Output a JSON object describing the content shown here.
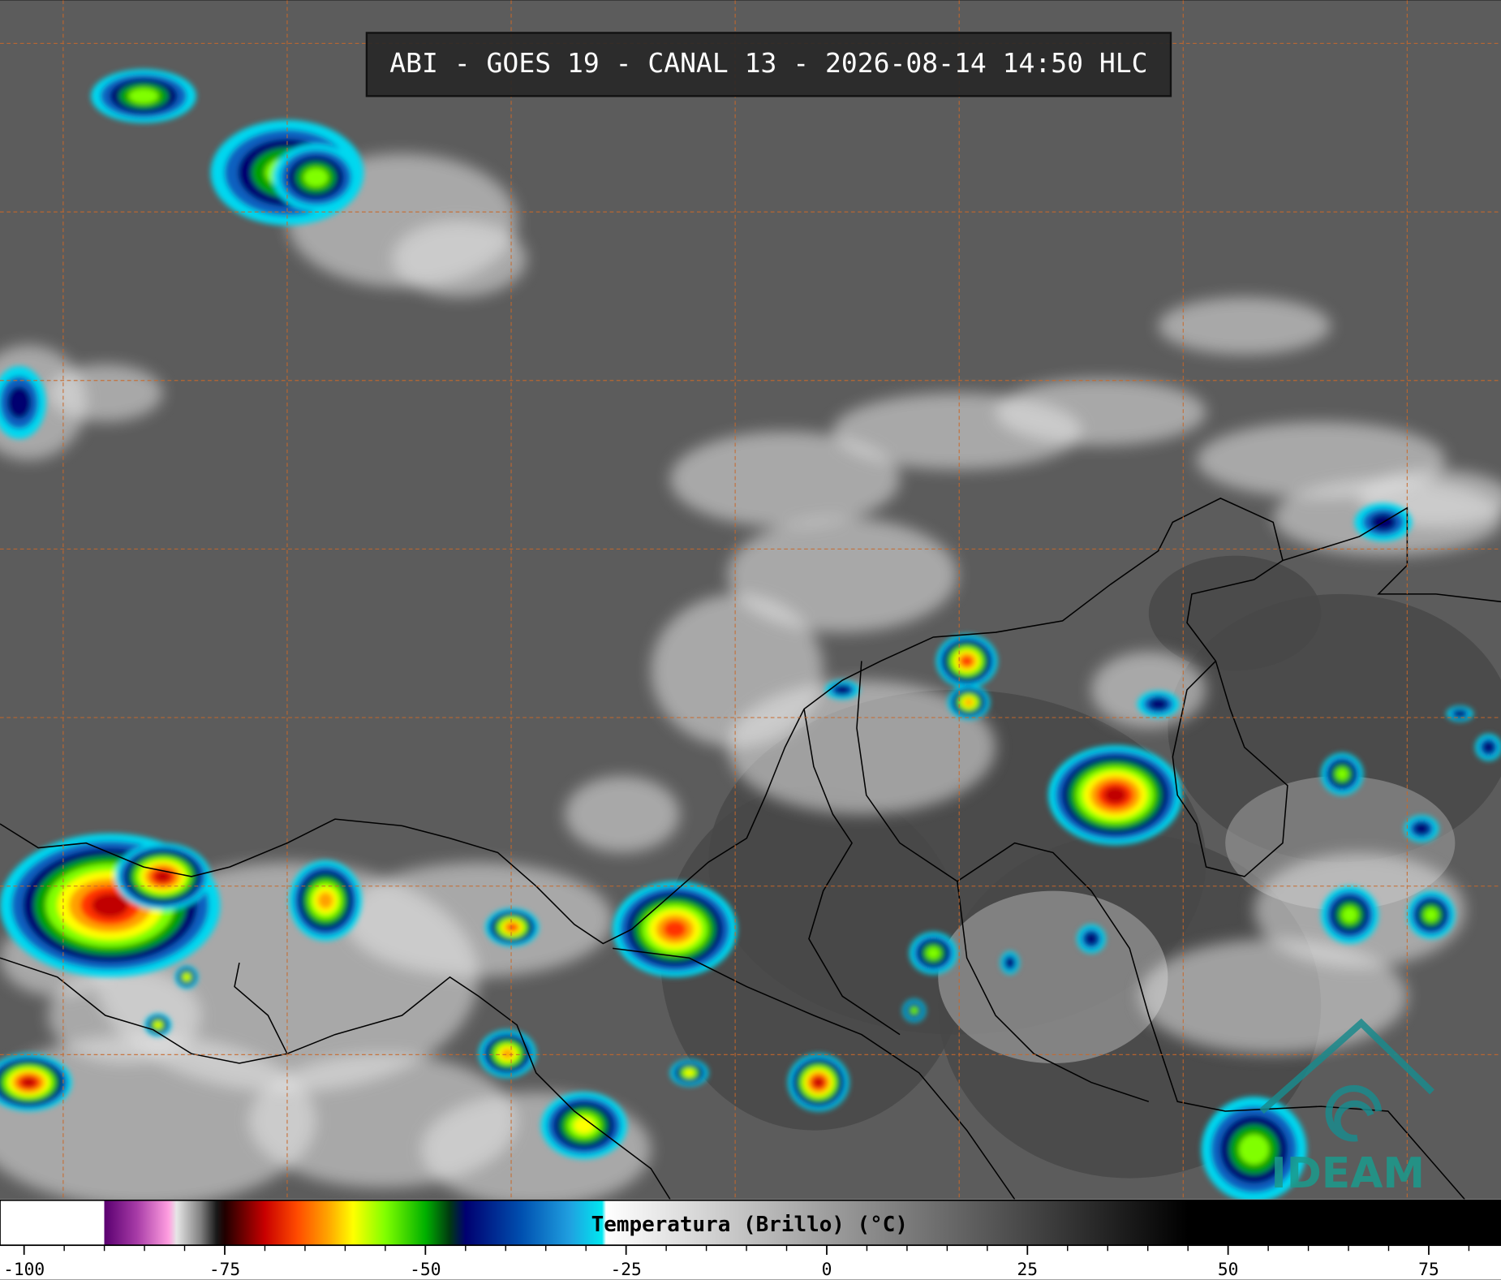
{
  "header": {
    "title": "ABI - GOES 19 - CANAL 13 - 2026-08-14 14:50 HLC"
  },
  "logo": {
    "text": "IDEAM"
  },
  "colorbar": {
    "label": "Temperatura (Brillo) (°C)",
    "lim": [
      -103,
      84
    ],
    "ticks": [
      -100,
      -75,
      -50,
      -25,
      0,
      25,
      50,
      75
    ],
    "minor_ticks": [
      -95,
      -90,
      -85,
      -80,
      -70,
      -65,
      -60,
      -55,
      -45,
      -40,
      -35,
      -30,
      -20,
      -15,
      -10,
      -5,
      5,
      10,
      15,
      20,
      30,
      35,
      40,
      45,
      55,
      60,
      65,
      70,
      80
    ],
    "stops": [
      {
        "value": -103,
        "color": "#ffffff"
      },
      {
        "value": -90,
        "color": "#ffffff"
      },
      {
        "value": -90,
        "color": "#5a0070"
      },
      {
        "value": -86,
        "color": "#a63aa6"
      },
      {
        "value": -82,
        "color": "#ff9ee0"
      },
      {
        "value": -81,
        "color": "#e6e6e6"
      },
      {
        "value": -78,
        "color": "#808080"
      },
      {
        "value": -76,
        "color": "#181818"
      },
      {
        "value": -75,
        "color": "#200000"
      },
      {
        "value": -70,
        "color": "#c80000"
      },
      {
        "value": -66,
        "color": "#ff4a00"
      },
      {
        "value": -62,
        "color": "#ffa800"
      },
      {
        "value": -59,
        "color": "#ffff00"
      },
      {
        "value": -55,
        "color": "#80ff00"
      },
      {
        "value": -50,
        "color": "#00b000"
      },
      {
        "value": -47,
        "color": "#003a10"
      },
      {
        "value": -45,
        "color": "#000070"
      },
      {
        "value": -38,
        "color": "#0050b0"
      },
      {
        "value": -32,
        "color": "#20a0e0"
      },
      {
        "value": -28,
        "color": "#00e8f0"
      },
      {
        "value": -27.5,
        "color": "#ffffff"
      },
      {
        "value": 45,
        "color": "#000000"
      },
      {
        "value": 84,
        "color": "#000000"
      }
    ]
  }
}
